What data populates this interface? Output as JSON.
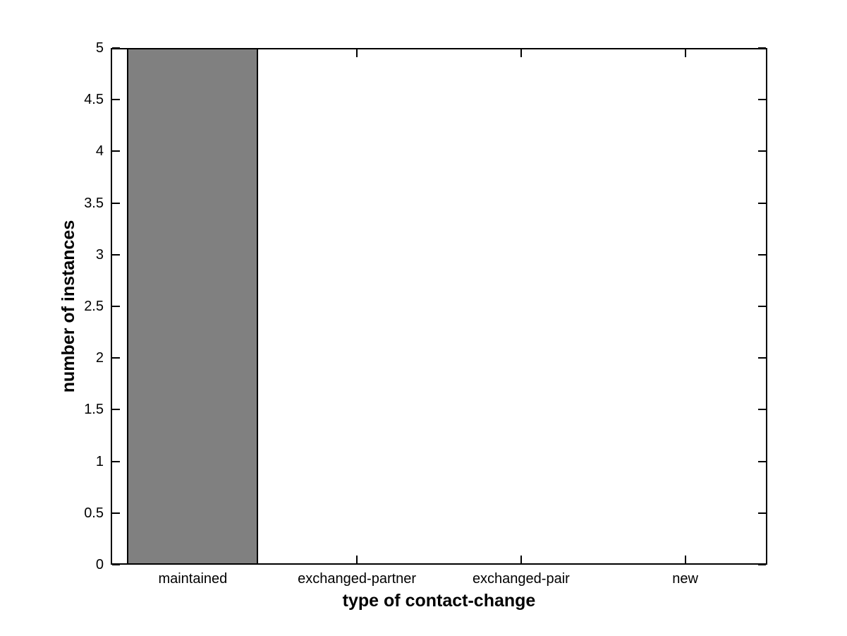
{
  "chart_data": {
    "type": "bar",
    "title": "",
    "categories": [
      "maintained",
      "exchanged-partner",
      "exchanged-pair",
      "new"
    ],
    "values": [
      5,
      0,
      0,
      0
    ],
    "xlabel": "type of contact-change",
    "ylabel": "number of instances",
    "ylim": [
      0,
      5
    ],
    "yticks": [
      0,
      0.5,
      1,
      1.5,
      2,
      2.5,
      3,
      3.5,
      4,
      4.5,
      5
    ],
    "bar_width_fraction": 0.8,
    "bar_fill_color": "#808080",
    "bar_edge_color": "#000000",
    "axis_color": "#000000",
    "background_color": "#ffffff",
    "grid": false,
    "legend": null,
    "tick_direction": "in",
    "box": true
  }
}
